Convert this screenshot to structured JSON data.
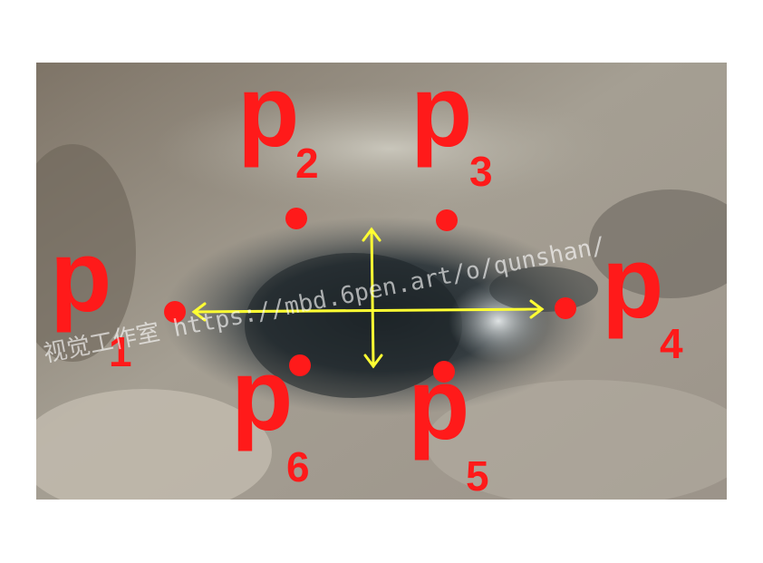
{
  "landmarks": [
    {
      "id": "p1",
      "letter": "p",
      "index": "1"
    },
    {
      "id": "p2",
      "letter": "p",
      "index": "2"
    },
    {
      "id": "p3",
      "letter": "p",
      "index": "3"
    },
    {
      "id": "p4",
      "letter": "p",
      "index": "4"
    },
    {
      "id": "p5",
      "letter": "p",
      "index": "5"
    },
    {
      "id": "p6",
      "letter": "p",
      "index": "6"
    }
  ],
  "watermark": "视觉工作室 https://mbd.6pen.art/o/qunshan/",
  "colors": {
    "point": "#ff1a1a",
    "label": "#ff1a1a",
    "arrow": "#ffff33"
  }
}
